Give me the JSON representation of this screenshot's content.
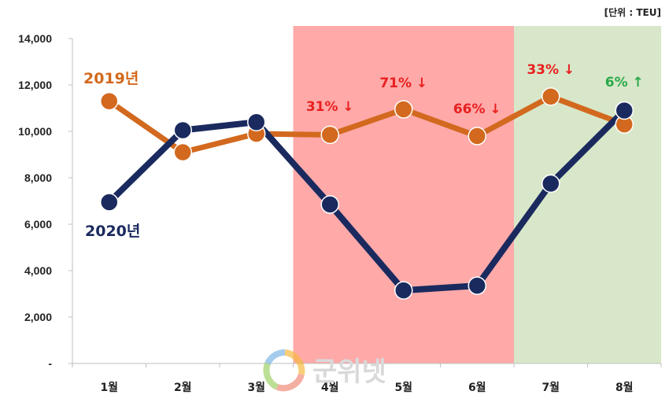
{
  "chart_data": {
    "type": "line",
    "unit_label": "[단위 : TEU]",
    "categories": [
      "1월",
      "2월",
      "3월",
      "4월",
      "5월",
      "6월",
      "7월",
      "8월"
    ],
    "ylim": [
      0,
      14000
    ],
    "yticks": [
      0,
      2000,
      4000,
      6000,
      8000,
      10000,
      12000,
      14000
    ],
    "ytick_labels": [
      "-",
      "2,000",
      "4,000",
      "6,000",
      "8,000",
      "10,000",
      "12,000",
      "14,000"
    ],
    "grid": false,
    "series": [
      {
        "name": "2019년",
        "color": "#d2691e",
        "values": [
          11300,
          9100,
          9900,
          9850,
          10950,
          9800,
          11500,
          10300
        ]
      },
      {
        "name": "2020년",
        "color": "#1a2a5e",
        "values": [
          6950,
          10050,
          10400,
          6850,
          3150,
          3350,
          7750,
          10900
        ]
      }
    ],
    "shaded_regions": [
      {
        "from_category": "4월",
        "to_category": "6월",
        "color": "#ffa9a9"
      },
      {
        "from_category": "7월",
        "to_category": "8월",
        "color": "#d8e7c9"
      }
    ],
    "annotations": [
      {
        "category": "4월",
        "text": "31% ↓",
        "color": "#e8201f"
      },
      {
        "category": "5월",
        "text": "71% ↓",
        "color": "#e8201f"
      },
      {
        "category": "6월",
        "text": "66% ↓",
        "color": "#e8201f"
      },
      {
        "category": "7월",
        "text": "33% ↓",
        "color": "#e8201f"
      },
      {
        "category": "8월",
        "text": "6% ↑",
        "color": "#2aa84a"
      }
    ]
  },
  "watermark": {
    "text": "군위넷"
  }
}
